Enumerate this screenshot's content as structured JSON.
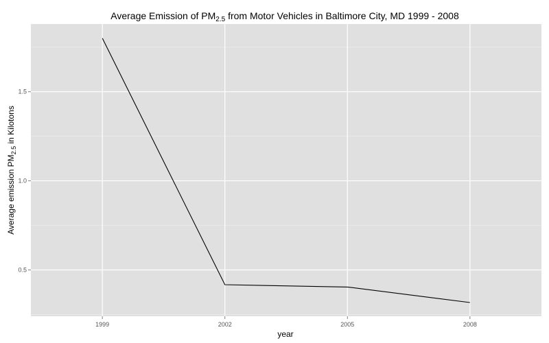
{
  "chart_data": {
    "type": "line",
    "title": {
      "prefix": "Average Emission of PM",
      "subscript": "2.5",
      "suffix": " from Motor Vehicles in Baltimore City, MD 1999 - 2008"
    },
    "xlabel": "year",
    "ylabel": {
      "prefix": "Average emission PM",
      "subscript": "2.5",
      "suffix": " in Kilotons"
    },
    "x": [
      1999,
      2002,
      2005,
      2008
    ],
    "x_tick_labels": [
      "1999",
      "2002",
      "2005",
      "2008"
    ],
    "series": [
      {
        "values": [
          1.8,
          0.417,
          0.404,
          0.317
        ]
      }
    ],
    "y_ticks": [
      0.5,
      1.0,
      1.5
    ],
    "y_tick_labels": [
      "0.5",
      "1.0",
      "1.5"
    ],
    "xlim": [
      1997.25,
      2009.75
    ],
    "ylim": [
      0.24,
      1.88
    ],
    "grid": true,
    "legend": "none",
    "colors": {
      "panel_background": "#e0e0e0",
      "grid_major": "#ffffff",
      "grid_minor": "#eeeeee",
      "line": "#000000"
    }
  }
}
